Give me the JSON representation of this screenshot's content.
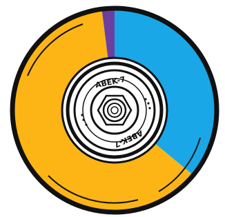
{
  "chart_data": {
    "type": "pie",
    "values": [
      36,
      62,
      2
    ],
    "colors": [
      "#1aa7e8",
      "#fdb515",
      "#6b3fa0"
    ],
    "annotations": [
      "ABEK-7",
      "ABEK-7"
    ]
  }
}
